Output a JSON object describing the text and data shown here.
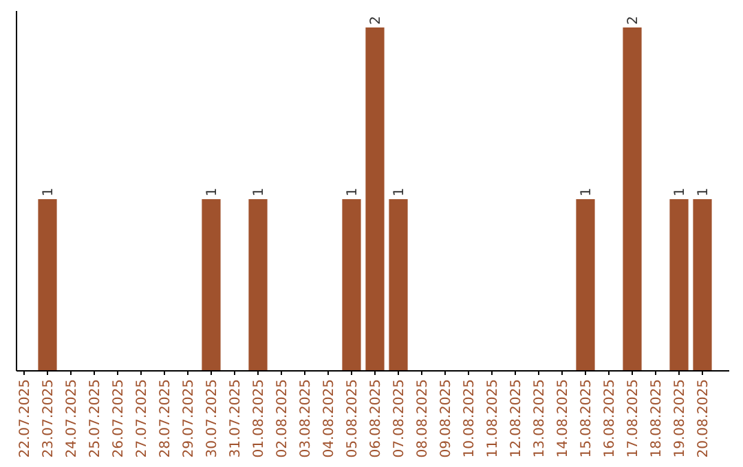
{
  "chart_data": {
    "type": "bar",
    "categories": [
      "22.07.2025",
      "23.07.2025",
      "24.07.2025",
      "25.07.2025",
      "26.07.2025",
      "27.07.2025",
      "28.07.2025",
      "29.07.2025",
      "30.07.2025",
      "31.07.2025",
      "01.08.2025",
      "02.08.2025",
      "03.08.2025",
      "04.08.2025",
      "05.08.2025",
      "06.08.2025",
      "07.08.2025",
      "08.08.2025",
      "09.08.2025",
      "10.08.2025",
      "11.08.2025",
      "12.08.2025",
      "13.08.2025",
      "14.08.2025",
      "15.08.2025",
      "16.08.2025",
      "17.08.2025",
      "18.08.2025",
      "19.08.2025",
      "20.08.2025"
    ],
    "values": [
      0,
      1,
      0,
      0,
      0,
      0,
      0,
      0,
      1,
      0,
      1,
      0,
      0,
      0,
      1,
      2,
      1,
      0,
      0,
      0,
      0,
      0,
      0,
      0,
      1,
      0,
      2,
      0,
      1,
      1
    ],
    "value_labels": [
      null,
      "1",
      null,
      null,
      null,
      null,
      null,
      null,
      "1",
      null,
      "1",
      null,
      null,
      null,
      "1",
      "2",
      "1",
      null,
      null,
      null,
      null,
      null,
      null,
      null,
      "1",
      null,
      "2",
      null,
      "1",
      "1"
    ],
    "color": "#a0522d"
  }
}
